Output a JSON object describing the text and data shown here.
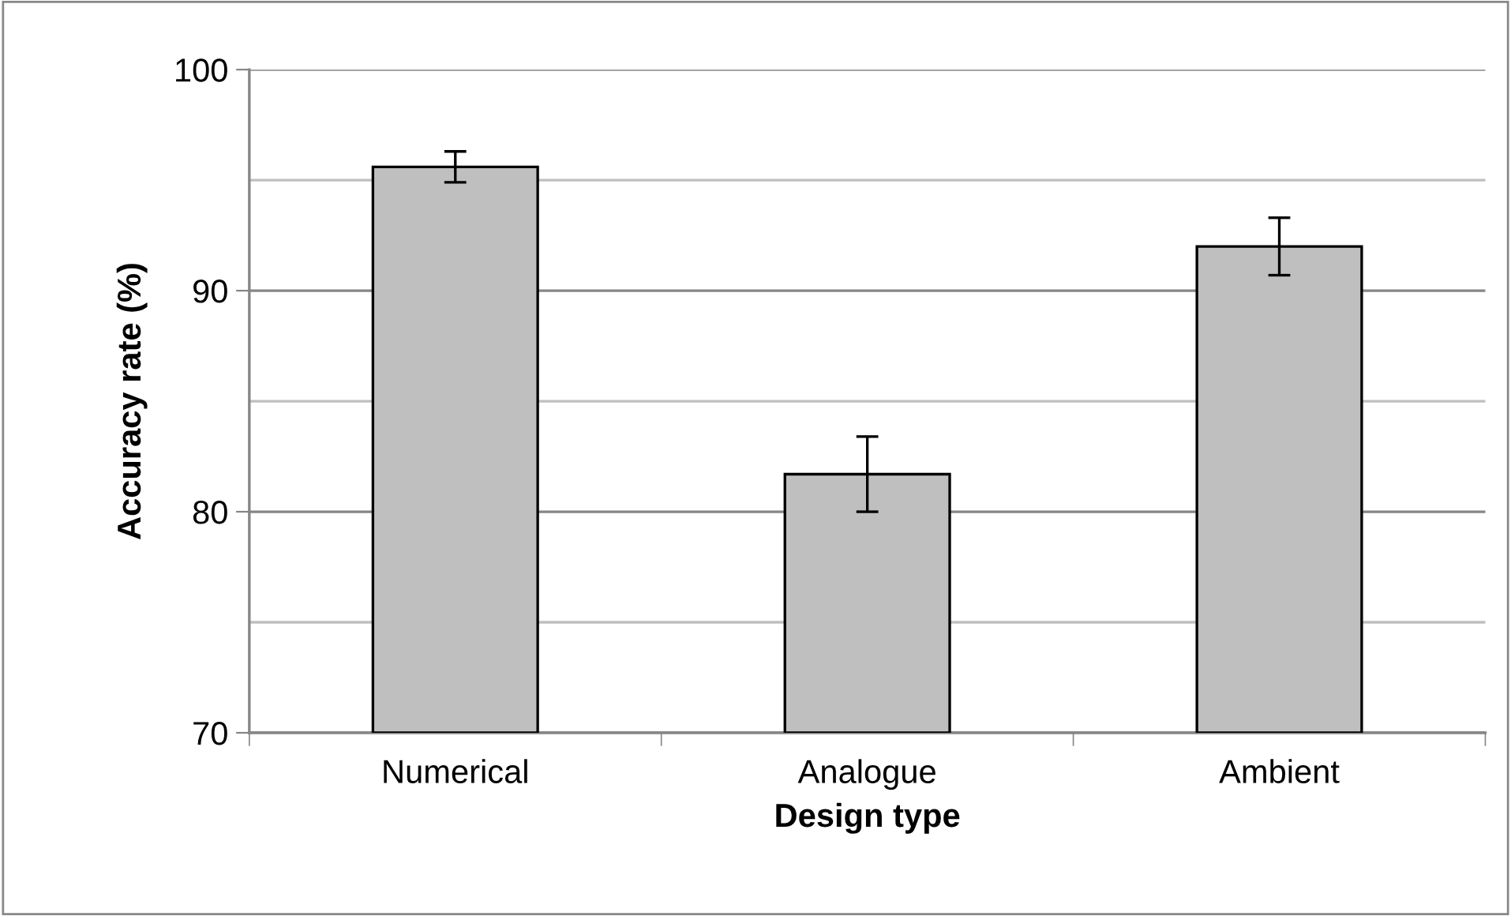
{
  "chart_data": {
    "type": "bar",
    "xlabel": "Design type",
    "ylabel": "Accuracy rate (%)",
    "categories": [
      "Numerical",
      "Analogue",
      "Ambient"
    ],
    "values": [
      95.6,
      81.7,
      92.0
    ],
    "errors": [
      0.7,
      1.7,
      1.3
    ],
    "color": "#bfbfbf",
    "ylim": [
      70,
      100
    ],
    "yticks": [
      70,
      {
        "value": 75,
        "label": null
      },
      80,
      {
        "value": 85,
        "label": null
      },
      90,
      {
        "value": 95,
        "label": null
      },
      100
    ],
    "grid": "y"
  }
}
